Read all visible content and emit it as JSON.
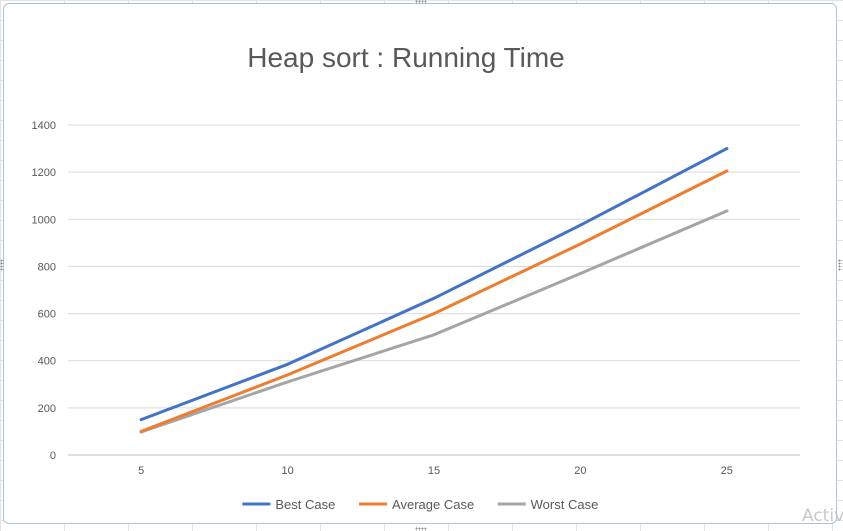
{
  "chart_data": {
    "type": "line",
    "title": "Heap sort : Running Time",
    "xlabel": "",
    "ylabel": "",
    "categories": [
      "5",
      "10",
      "15",
      "20",
      "25"
    ],
    "ylim": [
      0,
      1400
    ],
    "yticks": [
      "0",
      "200",
      "400",
      "600",
      "800",
      "1000",
      "1200",
      "1400"
    ],
    "grid": true,
    "legend_position": "bottom",
    "series": [
      {
        "name": "Best Case",
        "color": "#4472c4",
        "values": [
          150,
          385,
          665,
          975,
          1300
        ]
      },
      {
        "name": "Average Case",
        "color": "#ed7d31",
        "values": [
          100,
          340,
          600,
          895,
          1205
        ]
      },
      {
        "name": "Worst Case",
        "color": "#a5a5a5",
        "values": [
          98,
          310,
          510,
          770,
          1035
        ]
      }
    ]
  },
  "watermark_text": "Activ"
}
